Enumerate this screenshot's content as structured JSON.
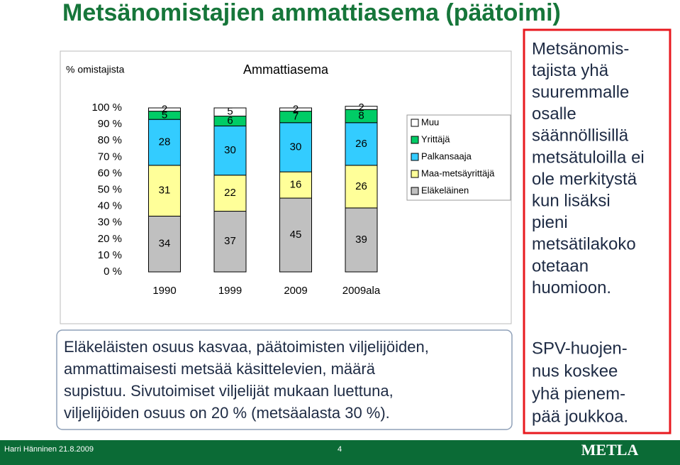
{
  "title": "Metsänomistajien ammattiasema (päätoimi)",
  "chart_data": {
    "type": "stacked-bar",
    "title": "Ammattiasema",
    "y_label": "% omistajista",
    "categories": [
      "1990",
      "1999",
      "2009",
      "2009ala"
    ],
    "series": [
      {
        "name": "Eläkeläinen",
        "color": "#c0c0c0",
        "values": [
          34,
          37,
          45,
          39
        ]
      },
      {
        "name": "Maa-metsäyrittäjä",
        "color": "#ffff99",
        "values": [
          31,
          22,
          16,
          26
        ]
      },
      {
        "name": "Palkansaaja",
        "color": "#33ccff",
        "values": [
          28,
          30,
          30,
          26
        ]
      },
      {
        "name": "Yrittäjä",
        "color": "#00cc66",
        "values": [
          5,
          6,
          7,
          8
        ]
      },
      {
        "name": "Muu",
        "color": "#ffffff",
        "values": [
          2,
          5,
          2,
          2
        ]
      }
    ],
    "ylim": [
      0,
      100
    ],
    "yticks": [
      {
        "value": 0,
        "label": "0 %"
      },
      {
        "value": 10,
        "label": "10 %"
      },
      {
        "value": 20,
        "label": "20 %"
      },
      {
        "value": 30,
        "label": "30 %"
      },
      {
        "value": 40,
        "label": "40 %"
      },
      {
        "value": 50,
        "label": "50 %"
      },
      {
        "value": 60,
        "label": "60 %"
      },
      {
        "value": 70,
        "label": "70 %"
      },
      {
        "value": 80,
        "label": "80 %"
      },
      {
        "value": 90,
        "label": "90 %"
      },
      {
        "value": 100,
        "label": "100 %"
      }
    ]
  },
  "body_text": [
    "Eläkeläisten osuus kasvaa, päätoimisten viljelijöiden,",
    "ammattimaisesti metsää käsittelevien, määrä",
    "supistuu. Sivutoimiset viljelijät mukaan luettuna,",
    "viljelijöiden osuus on 20 % (metsäalasta 30 %)."
  ],
  "side_note": {
    "paragraph1": [
      "Metsänomis-",
      "tajista yhä",
      "suuremmalle",
      "osalle",
      "säännöllisillä",
      "metsätuloilla ei",
      "ole merkitystä",
      "kun lisäksi",
      "pieni",
      "metsätilakoko",
      "otetaan",
      "huomioon."
    ],
    "paragraph2": [
      "SPV-huojen-",
      "nus koskee",
      "yhä pienem-",
      "pää joukkoa."
    ]
  },
  "footer": {
    "author": "Harri Hänninen 21.8.2009",
    "page": "4",
    "logo": "METLA"
  }
}
